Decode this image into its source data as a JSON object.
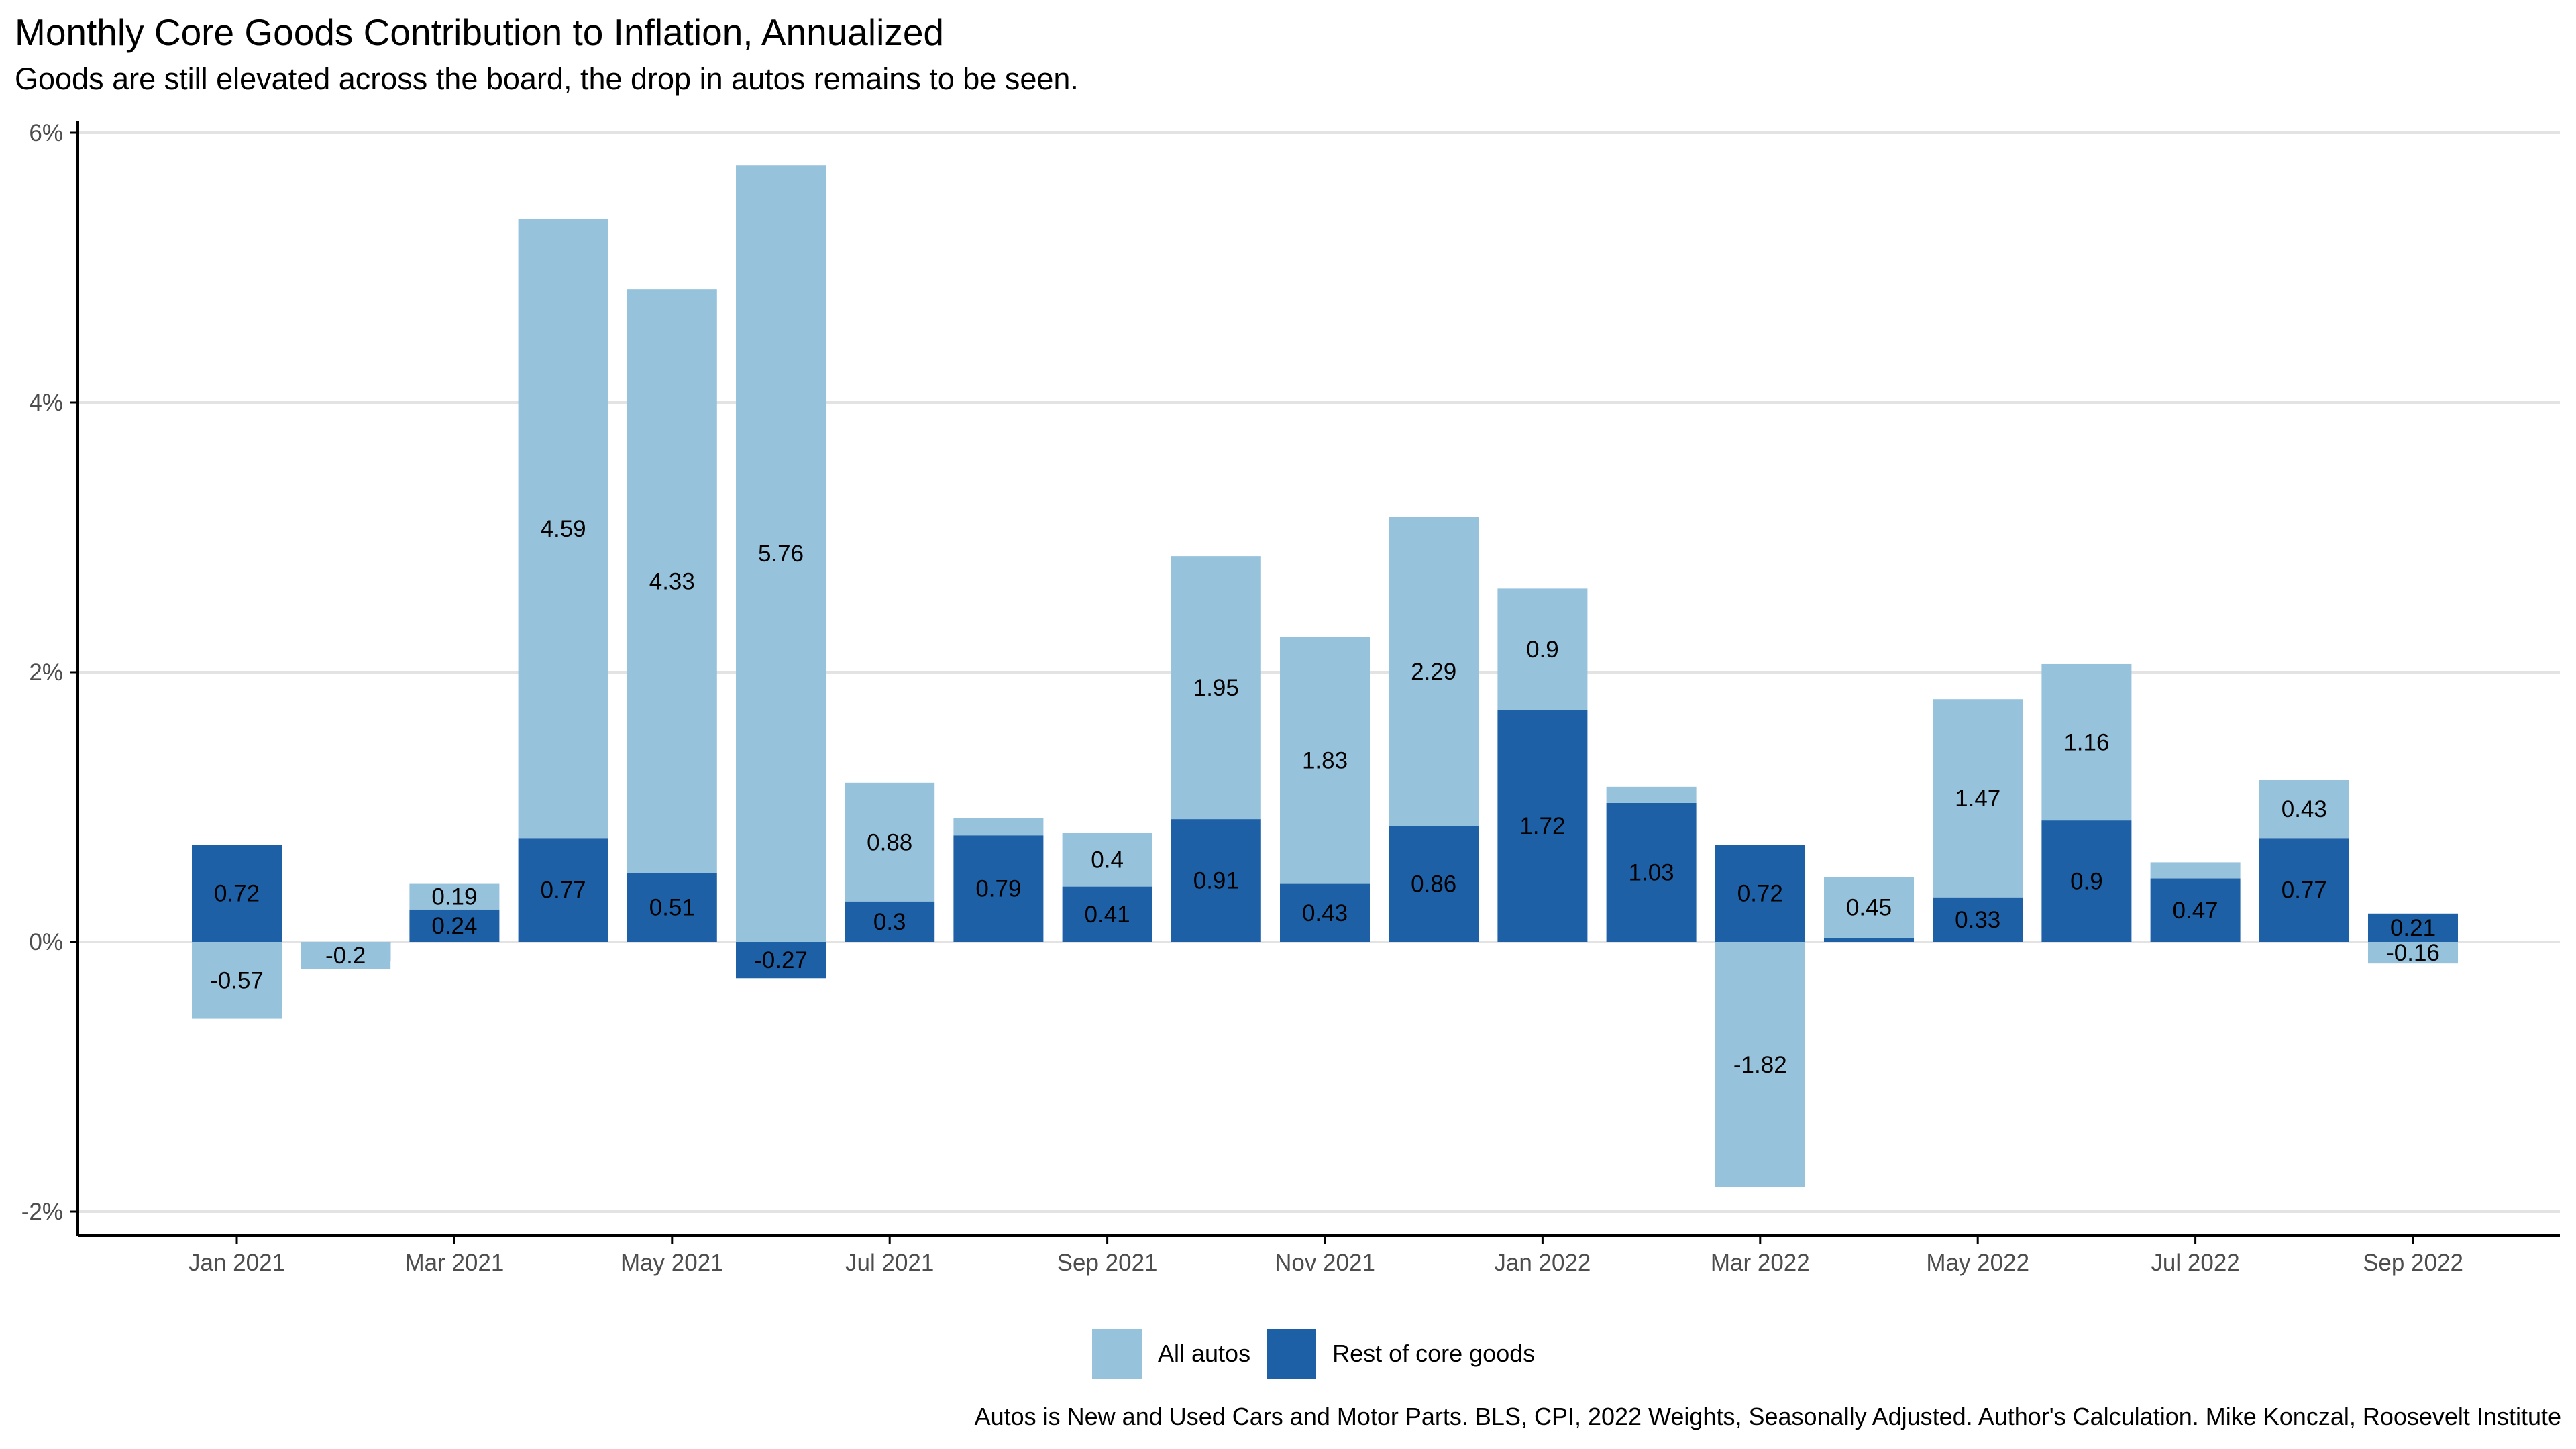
{
  "title": "Monthly Core Goods Contribution to Inflation, Annualized",
  "subtitle": "Goods are still elevated across the board, the drop in autos remains to be seen.",
  "caption": "Autos is New and Used Cars and Motor Parts. BLS, CPI, 2022 Weights, Seasonally Adjusted. Author's Calculation. Mike Konczal, Roosevelt Institute",
  "colors": {
    "autos": "#96c2dc",
    "rest": "#1e60a6",
    "grid": "#e3e3e3",
    "axis": "#000000"
  },
  "chart_data": {
    "type": "bar",
    "stacked": true,
    "categories": [
      "Jan 2021",
      "Feb 2021",
      "Mar 2021",
      "Apr 2021",
      "May 2021",
      "Jun 2021",
      "Jul 2021",
      "Aug 2021",
      "Sep 2021",
      "Oct 2021",
      "Nov 2021",
      "Dec 2021",
      "Jan 2022",
      "Feb 2022",
      "Mar 2022",
      "Apr 2022",
      "May 2022",
      "Jun 2022",
      "Jul 2022",
      "Aug 2022",
      "Sep 2022"
    ],
    "x_tick_labels": [
      "Jan 2021",
      "Mar 2021",
      "May 2021",
      "Jul 2021",
      "Sep 2021",
      "Nov 2021",
      "Jan 2022",
      "Mar 2022",
      "May 2022",
      "Jul 2022",
      "Sep 2022"
    ],
    "series": [
      {
        "name": "All autos",
        "values": [
          -0.57,
          -0.2,
          0.19,
          4.59,
          4.33,
          5.76,
          0.88,
          0.13,
          0.4,
          1.95,
          1.83,
          2.29,
          0.9,
          0.12,
          -1.82,
          0.45,
          1.47,
          1.16,
          0.12,
          0.43,
          -0.16
        ],
        "labels": [
          "-0.57",
          "-0.2",
          "0.19",
          "4.59",
          "4.33",
          "5.76",
          "0.88",
          "",
          "0.4",
          "1.95",
          "1.83",
          "2.29",
          "0.9",
          "",
          "-1.82",
          "0.45",
          "1.47",
          "1.16",
          "",
          "0.43",
          "-0.16"
        ]
      },
      {
        "name": "Rest of core goods",
        "values": [
          0.72,
          -0.14,
          0.24,
          0.77,
          0.51,
          -0.27,
          0.3,
          0.79,
          0.41,
          0.91,
          0.43,
          0.86,
          1.72,
          1.03,
          0.72,
          0.03,
          0.33,
          0.9,
          0.47,
          0.77,
          0.21
        ],
        "labels": [
          "0.72",
          "",
          "0.24",
          "0.77",
          "0.51",
          "-0.27",
          "0.3",
          "0.79",
          "0.41",
          "0.91",
          "0.43",
          "0.86",
          "1.72",
          "1.03",
          "0.72",
          "",
          "0.33",
          "0.9",
          "0.47",
          "0.77",
          "0.21"
        ]
      }
    ],
    "y_ticks": [
      -2,
      0,
      2,
      4,
      6
    ],
    "y_tick_labels": [
      "-2%",
      "0%",
      "2%",
      "4%",
      "6%"
    ],
    "ylim": [
      -2.2,
      6.2
    ],
    "grid": true,
    "legend_position": "bottom"
  }
}
